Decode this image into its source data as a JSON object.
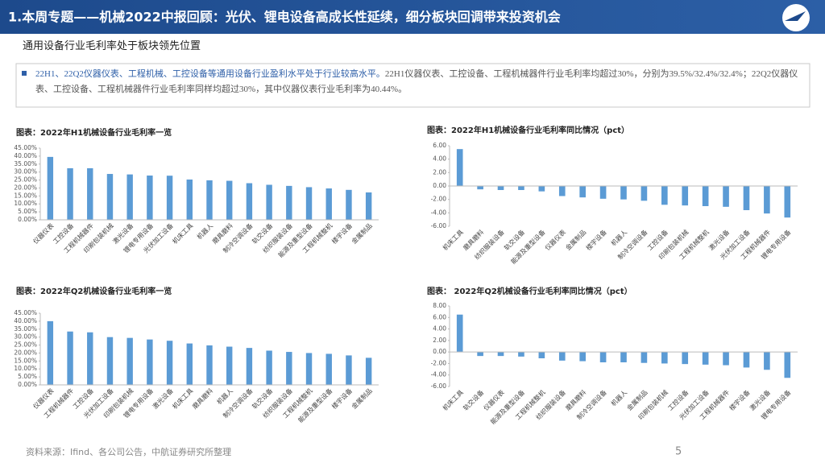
{
  "header": {
    "title": "1.本周专题——机械2022中报回顾：光伏、锂电设备高成长性延续，细分板块回调带来投资机会",
    "subtitle": "通用设备行业毛利率处于板块领先位置",
    "callout_lead": "22H1、22Q2仪器仪表、工程机械、工控设备等通用设备行业盈利水平处于行业较高水平。",
    "callout_body": "22H1仪器仪表、工控设备、工程机械器件行业毛利率均超过30%，分别为39.5%/32.4%/32.4%；22Q2仪器仪表、工控设备、工程机械器件行业毛利率同样均超过30%，其中仪器仪表行业毛利率为40.44%。"
  },
  "footer": {
    "source": "资料来源：Ifind、各公司公告，中航证券研究所整理",
    "page": "5"
  },
  "chart_data": [
    {
      "type": "bar",
      "title": "图表：2022年H1机械设备行业毛利率一览",
      "color": "#5b9bd5",
      "categories": [
        "仪器仪表",
        "工控设备",
        "工程机械器件",
        "印刷包装机械",
        "激光设备",
        "锂电专用设备",
        "光伏加工设备",
        "机床工具",
        "机器人",
        "磨具磨料",
        "制冷空调设备",
        "轨交设备",
        "纺织服装设备",
        "能源及重型设备",
        "工程机械整机",
        "楼宇设备",
        "金属制品"
      ],
      "values": [
        39.5,
        32.4,
        32.4,
        28.8,
        28.5,
        27.8,
        27.7,
        25.3,
        24.8,
        24.5,
        23,
        22,
        21.3,
        20.5,
        19.7,
        18.8,
        17.2
      ],
      "ylim": [
        0,
        45
      ],
      "yticks": [
        {
          "value": 0,
          "label": "0.00%"
        },
        {
          "value": 5,
          "label": "5.00%"
        },
        {
          "value": 10,
          "label": "10.00%"
        },
        {
          "value": 15,
          "label": "15.00%"
        },
        {
          "value": 20,
          "label": "20.00%"
        },
        {
          "value": 25,
          "label": "25.00%"
        },
        {
          "value": 30,
          "label": "30.00%"
        },
        {
          "value": 35,
          "label": "35.00%"
        },
        {
          "value": 40,
          "label": "40.00%"
        },
        {
          "value": 45,
          "label": "45.00%"
        }
      ],
      "grid": false
    },
    {
      "type": "bar",
      "title": "图表：2022年H1机械设备行业毛利率同比情况（pct）",
      "color": "#5b9bd5",
      "categories": [
        "机床工具",
        "磨具磨料",
        "纺织服装设备",
        "轨交设备",
        "能源及重型设备",
        "仪器仪表",
        "金属制品",
        "楼宇设备",
        "机器人",
        "制冷空调设备",
        "工控设备",
        "印刷包装机械",
        "工程机械整机",
        "激光设备",
        "光伏加工设备",
        "工程机械器件",
        "锂电专用设备"
      ],
      "values": [
        5.5,
        -0.5,
        -0.6,
        -0.6,
        -0.8,
        -1.5,
        -1.7,
        -1.9,
        -2.0,
        -2.2,
        -2.8,
        -2.9,
        -3.0,
        -3.1,
        -3.6,
        -4.1,
        -4.7
      ],
      "ylim": [
        -6,
        6
      ],
      "yticks": [
        {
          "value": -6,
          "label": "-6.00"
        },
        {
          "value": -4,
          "label": "-4.00"
        },
        {
          "value": -2,
          "label": "-2.00"
        },
        {
          "value": 0,
          "label": "0.00"
        },
        {
          "value": 2,
          "label": "2.00"
        },
        {
          "value": 4,
          "label": "4.00"
        },
        {
          "value": 6,
          "label": "6.00"
        }
      ],
      "grid": false
    },
    {
      "type": "bar",
      "title": "图表：2022年Q2机械设备行业毛利率一览",
      "color": "#5b9bd5",
      "categories": [
        "仪器仪表",
        "工程机械器件",
        "工控设备",
        "光伏加工设备",
        "印刷包装机械",
        "锂电专用设备",
        "激光设备",
        "机床工具",
        "磨具磨料",
        "机器人",
        "制冷空调设备",
        "轨交设备",
        "纺织服装设备",
        "工程机械整机",
        "能源及重型设备",
        "楼宇设备",
        "金属制品"
      ],
      "values": [
        40,
        33.5,
        33,
        30,
        29.5,
        28.5,
        27.7,
        26,
        24.8,
        24,
        23.2,
        21.5,
        20.7,
        20,
        19.5,
        18.5,
        17
      ],
      "ylim": [
        0,
        45
      ],
      "yticks": [
        {
          "value": 0,
          "label": "0.00%"
        },
        {
          "value": 5,
          "label": "5.00%"
        },
        {
          "value": 10,
          "label": "10.00%"
        },
        {
          "value": 15,
          "label": "15.00%"
        },
        {
          "value": 20,
          "label": "20.00%"
        },
        {
          "value": 25,
          "label": "25.00%"
        },
        {
          "value": 30,
          "label": "30.00%"
        },
        {
          "value": 35,
          "label": "35.00%"
        },
        {
          "value": 40,
          "label": "40.00%"
        },
        {
          "value": 45,
          "label": "45.00%"
        }
      ],
      "grid": false
    },
    {
      "type": "bar",
      "title": "图表： 2022年Q2机械设备行业毛利率同比情况（pct）",
      "color": "#5b9bd5",
      "categories": [
        "机床工具",
        "轨交设备",
        "仪器仪表",
        "能源及重型设备",
        "工程机械整机",
        "纺织服装设备",
        "磨具磨料",
        "制冷空调设备",
        "机器人",
        "金属制品",
        "印刷包装机械",
        "工控设备",
        "光伏加工设备",
        "工程机械器件",
        "楼宇设备",
        "激光设备",
        "锂电专用设备"
      ],
      "values": [
        6.5,
        -0.7,
        -0.7,
        -0.8,
        -1.1,
        -1.5,
        -1.6,
        -1.8,
        -1.8,
        -1.9,
        -2.0,
        -2.1,
        -2.2,
        -2.3,
        -2.7,
        -3.1,
        -4.5
      ],
      "ylim": [
        -6,
        8
      ],
      "yticks": [
        {
          "value": -6,
          "label": "-6.00"
        },
        {
          "value": -4,
          "label": "-4.00"
        },
        {
          "value": -2,
          "label": "-2.00"
        },
        {
          "value": 0,
          "label": "0.00"
        },
        {
          "value": 2,
          "label": "2.00"
        },
        {
          "value": 4,
          "label": "4.00"
        },
        {
          "value": 6,
          "label": "6.00"
        },
        {
          "value": 8,
          "label": "8.00"
        }
      ],
      "grid": false
    }
  ]
}
